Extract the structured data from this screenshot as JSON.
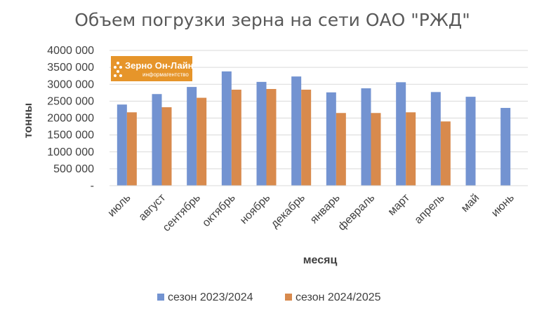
{
  "chart_data": {
    "type": "bar",
    "title": "Объем погрузки зерна на сети ОАО \"РЖД\"",
    "xlabel": "месяц",
    "ylabel": "тонны",
    "ylim": [
      0,
      4000000
    ],
    "y_ticks": [
      "-",
      "500 000",
      "1000 000",
      "1500 000",
      "2000 000",
      "2500 000",
      "3000 000",
      "3500 000",
      "4000 000"
    ],
    "categories": [
      "июль",
      "август",
      "сентябрь",
      "октябрь",
      "ноябрь",
      "декабрь",
      "январь",
      "февраль",
      "март",
      "апрель",
      "май",
      "июнь"
    ],
    "series": [
      {
        "name": "сезон 2023/2024",
        "color": "#7393d1",
        "values": [
          2400000,
          2710000,
          2920000,
          3380000,
          3070000,
          3230000,
          2760000,
          2880000,
          3060000,
          2770000,
          2630000,
          2300000
        ]
      },
      {
        "name": "сезон 2024/2025",
        "color": "#d88a4d",
        "values": [
          2170000,
          2320000,
          2600000,
          2840000,
          2860000,
          2840000,
          2150000,
          2150000,
          2170000,
          1900000,
          null,
          null
        ]
      }
    ],
    "grid": true,
    "legend_position": "bottom"
  },
  "watermark": {
    "line1": "Зерно Он-Лайн",
    "line2": "информагентство",
    "color": "#e6952a"
  }
}
